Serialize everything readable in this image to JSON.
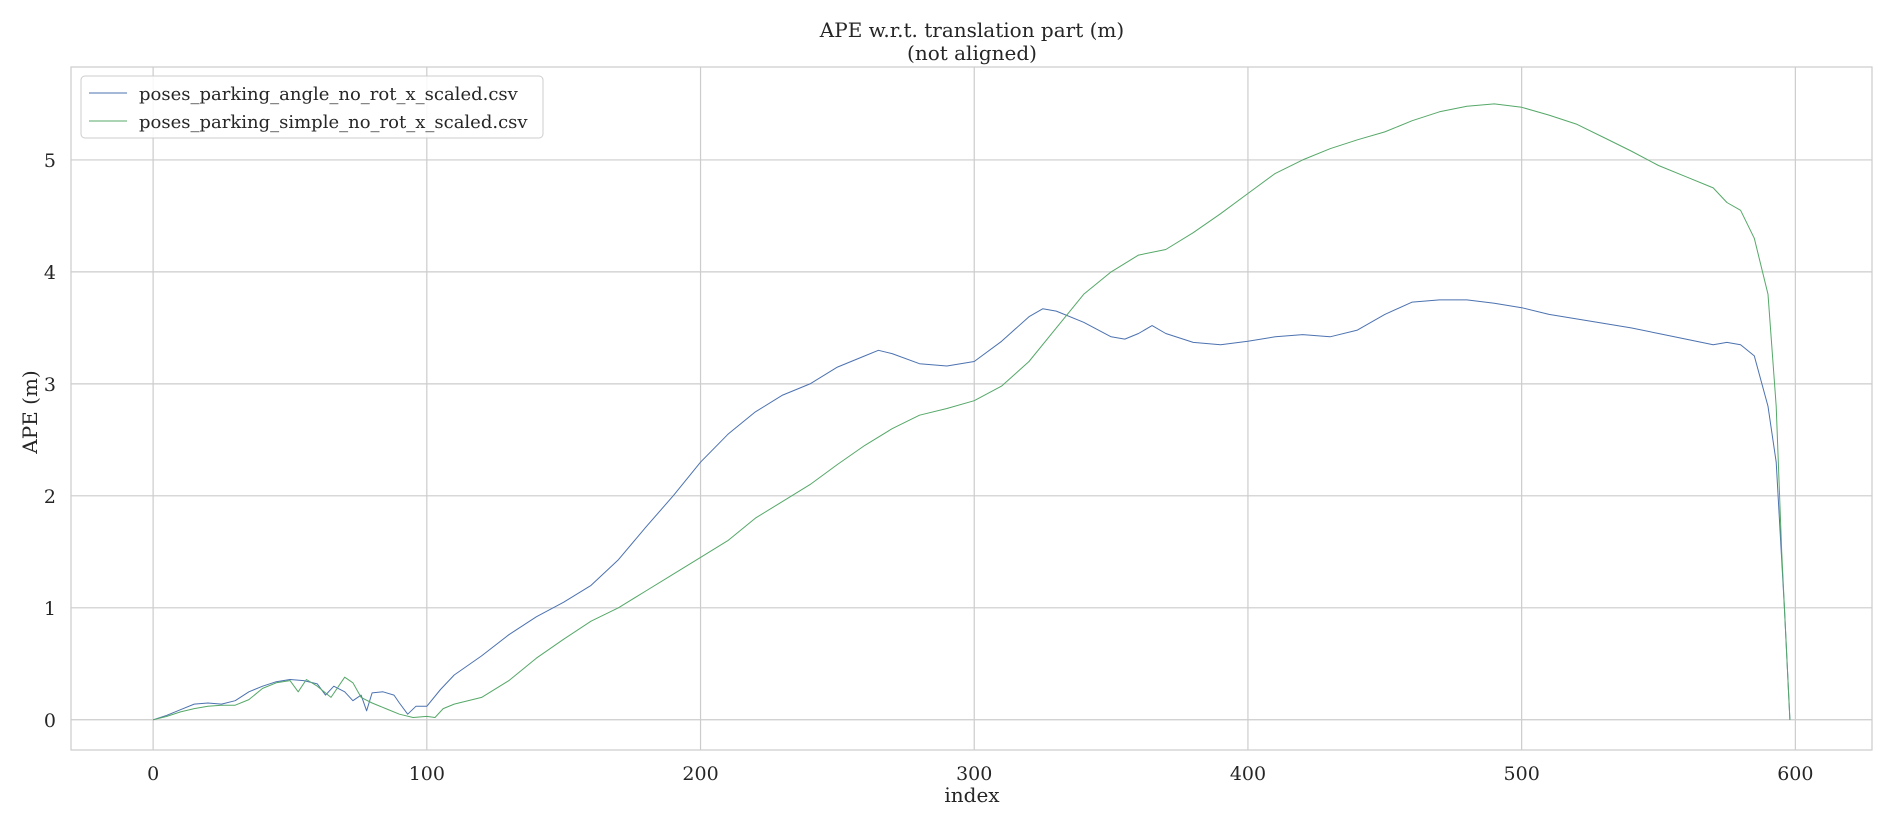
{
  "chart_data": {
    "type": "line",
    "title": "APE w.r.t. translation part (m)",
    "subtitle": "(not aligned)",
    "xlabel": "index",
    "ylabel": "APE (m)",
    "xlim": [
      -30,
      628
    ],
    "ylim": [
      -0.27,
      5.83
    ],
    "xticks": [
      0,
      100,
      200,
      300,
      400,
      500,
      600
    ],
    "yticks": [
      0,
      1,
      2,
      3,
      4,
      5
    ],
    "grid": true,
    "legend_position": "upper-left",
    "series": [
      {
        "name": "poses_parking_angle_no_rot_x_scaled.csv",
        "color": "#4c72b0",
        "points": [
          [
            0,
            0
          ],
          [
            5,
            0.04
          ],
          [
            10,
            0.09
          ],
          [
            15,
            0.14
          ],
          [
            20,
            0.15
          ],
          [
            25,
            0.14
          ],
          [
            30,
            0.17
          ],
          [
            35,
            0.25
          ],
          [
            40,
            0.3
          ],
          [
            45,
            0.34
          ],
          [
            50,
            0.36
          ],
          [
            55,
            0.35
          ],
          [
            60,
            0.32
          ],
          [
            63,
            0.22
          ],
          [
            66,
            0.3
          ],
          [
            70,
            0.25
          ],
          [
            73,
            0.17
          ],
          [
            76,
            0.22
          ],
          [
            78,
            0.08
          ],
          [
            80,
            0.24
          ],
          [
            84,
            0.25
          ],
          [
            88,
            0.22
          ],
          [
            90,
            0.15
          ],
          [
            93,
            0.05
          ],
          [
            96,
            0.12
          ],
          [
            100,
            0.12
          ],
          [
            105,
            0.27
          ],
          [
            110,
            0.4
          ],
          [
            120,
            0.57
          ],
          [
            130,
            0.76
          ],
          [
            140,
            0.92
          ],
          [
            150,
            1.05
          ],
          [
            160,
            1.2
          ],
          [
            170,
            1.43
          ],
          [
            180,
            1.72
          ],
          [
            190,
            2.0
          ],
          [
            200,
            2.3
          ],
          [
            210,
            2.55
          ],
          [
            220,
            2.75
          ],
          [
            230,
            2.9
          ],
          [
            240,
            3.0
          ],
          [
            250,
            3.15
          ],
          [
            260,
            3.25
          ],
          [
            265,
            3.3
          ],
          [
            270,
            3.27
          ],
          [
            280,
            3.18
          ],
          [
            290,
            3.16
          ],
          [
            300,
            3.2
          ],
          [
            310,
            3.38
          ],
          [
            320,
            3.6
          ],
          [
            325,
            3.67
          ],
          [
            330,
            3.65
          ],
          [
            340,
            3.55
          ],
          [
            350,
            3.42
          ],
          [
            355,
            3.4
          ],
          [
            360,
            3.45
          ],
          [
            365,
            3.52
          ],
          [
            370,
            3.45
          ],
          [
            380,
            3.37
          ],
          [
            390,
            3.35
          ],
          [
            400,
            3.38
          ],
          [
            410,
            3.42
          ],
          [
            420,
            3.44
          ],
          [
            430,
            3.42
          ],
          [
            440,
            3.48
          ],
          [
            450,
            3.62
          ],
          [
            460,
            3.73
          ],
          [
            470,
            3.75
          ],
          [
            480,
            3.75
          ],
          [
            490,
            3.72
          ],
          [
            500,
            3.68
          ],
          [
            510,
            3.62
          ],
          [
            520,
            3.58
          ],
          [
            530,
            3.54
          ],
          [
            540,
            3.5
          ],
          [
            550,
            3.45
          ],
          [
            560,
            3.4
          ],
          [
            570,
            3.35
          ],
          [
            575,
            3.37
          ],
          [
            580,
            3.35
          ],
          [
            585,
            3.25
          ],
          [
            590,
            2.8
          ],
          [
            593,
            2.3
          ],
          [
            596,
            1.0
          ],
          [
            598,
            0
          ]
        ]
      },
      {
        "name": "poses_parking_simple_no_rot_x_scaled.csv",
        "color": "#55a868",
        "points": [
          [
            0,
            0
          ],
          [
            5,
            0.03
          ],
          [
            10,
            0.07
          ],
          [
            15,
            0.1
          ],
          [
            20,
            0.12
          ],
          [
            25,
            0.13
          ],
          [
            30,
            0.13
          ],
          [
            35,
            0.18
          ],
          [
            40,
            0.28
          ],
          [
            45,
            0.33
          ],
          [
            50,
            0.35
          ],
          [
            53,
            0.25
          ],
          [
            56,
            0.36
          ],
          [
            60,
            0.3
          ],
          [
            65,
            0.2
          ],
          [
            70,
            0.38
          ],
          [
            73,
            0.33
          ],
          [
            76,
            0.2
          ],
          [
            80,
            0.15
          ],
          [
            85,
            0.1
          ],
          [
            90,
            0.05
          ],
          [
            95,
            0.02
          ],
          [
            100,
            0.03
          ],
          [
            103,
            0.02
          ],
          [
            106,
            0.1
          ],
          [
            110,
            0.14
          ],
          [
            120,
            0.2
          ],
          [
            130,
            0.35
          ],
          [
            140,
            0.55
          ],
          [
            150,
            0.72
          ],
          [
            160,
            0.88
          ],
          [
            170,
            1.0
          ],
          [
            180,
            1.15
          ],
          [
            190,
            1.3
          ],
          [
            200,
            1.45
          ],
          [
            210,
            1.6
          ],
          [
            220,
            1.8
          ],
          [
            230,
            1.95
          ],
          [
            240,
            2.1
          ],
          [
            250,
            2.28
          ],
          [
            260,
            2.45
          ],
          [
            270,
            2.6
          ],
          [
            280,
            2.72
          ],
          [
            290,
            2.78
          ],
          [
            300,
            2.85
          ],
          [
            310,
            2.98
          ],
          [
            320,
            3.2
          ],
          [
            330,
            3.5
          ],
          [
            340,
            3.8
          ],
          [
            350,
            4.0
          ],
          [
            360,
            4.15
          ],
          [
            370,
            4.2
          ],
          [
            380,
            4.35
          ],
          [
            390,
            4.52
          ],
          [
            400,
            4.7
          ],
          [
            410,
            4.88
          ],
          [
            420,
            5.0
          ],
          [
            430,
            5.1
          ],
          [
            440,
            5.18
          ],
          [
            450,
            5.25
          ],
          [
            460,
            5.35
          ],
          [
            470,
            5.43
          ],
          [
            480,
            5.48
          ],
          [
            490,
            5.5
          ],
          [
            500,
            5.47
          ],
          [
            510,
            5.4
          ],
          [
            520,
            5.32
          ],
          [
            530,
            5.2
          ],
          [
            540,
            5.08
          ],
          [
            550,
            4.95
          ],
          [
            560,
            4.85
          ],
          [
            570,
            4.75
          ],
          [
            575,
            4.62
          ],
          [
            580,
            4.55
          ],
          [
            585,
            4.3
          ],
          [
            590,
            3.8
          ],
          [
            593,
            2.8
          ],
          [
            595,
            1.5
          ],
          [
            598,
            0
          ]
        ]
      }
    ]
  }
}
